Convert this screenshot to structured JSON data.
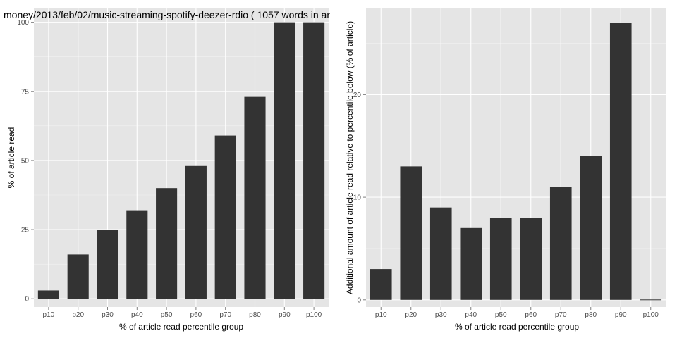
{
  "chart_data": [
    {
      "type": "bar",
      "title": "money/2013/feb/02/music-streaming-spotify-deezer-rdio ( 1057 words in ar",
      "xlabel": "% of article read percentile group",
      "ylabel": "% of article read",
      "categories": [
        "p10",
        "p20",
        "p30",
        "p40",
        "p50",
        "p60",
        "p70",
        "p80",
        "p90",
        "p100"
      ],
      "values": [
        3,
        16,
        25,
        32,
        40,
        48,
        59,
        73,
        100,
        100
      ],
      "ylim": [
        0,
        100
      ],
      "yticks": [
        0,
        25,
        50,
        75,
        100
      ],
      "ytick_labels": [
        "0",
        "25",
        "50",
        "75",
        "100"
      ],
      "grid": true
    },
    {
      "type": "bar",
      "title": "",
      "xlabel": "% of article read percentile group",
      "ylabel": "Additional amount of article read relative to percentile below (% of article)",
      "categories": [
        "p10",
        "p20",
        "p30",
        "p40",
        "p50",
        "p60",
        "p70",
        "p80",
        "p90",
        "p100"
      ],
      "values": [
        3,
        13,
        9,
        7,
        8,
        8,
        11,
        14,
        27,
        0
      ],
      "ylim": [
        0,
        27
      ],
      "yticks": [
        0,
        10,
        20
      ],
      "ytick_labels": [
        "0",
        "10",
        "20"
      ],
      "grid": true
    }
  ],
  "colors": {
    "panel_background": "#e5e5e5",
    "bar": "#333333",
    "grid": "#ffffff",
    "tick_label": "#4d4d4d"
  }
}
